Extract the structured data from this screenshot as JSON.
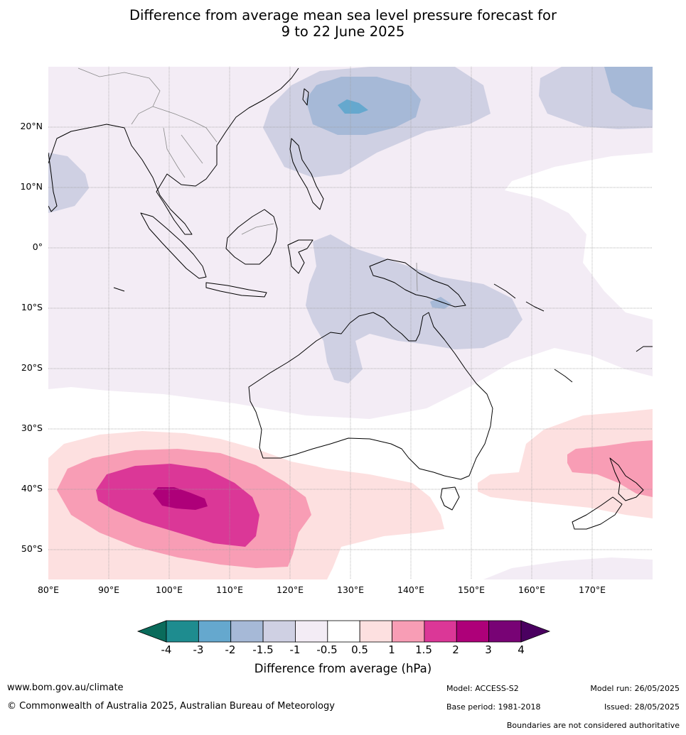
{
  "title_line1": "Difference from average mean sea level pressure forecast for",
  "title_line2": "9 to 22 June 2025",
  "map": {
    "lat_labels": [
      "20°N",
      "10°N",
      "0°",
      "10°S",
      "20°S",
      "30°S",
      "40°S",
      "50°S"
    ],
    "lon_labels": [
      "80°E",
      "90°E",
      "100°E",
      "110°E",
      "120°E",
      "130°E",
      "140°E",
      "150°E",
      "160°E",
      "170°E"
    ],
    "extent": {
      "lon_min": 80,
      "lon_max": 180,
      "lat_min": -55,
      "lat_max": 30
    }
  },
  "colorbar": {
    "ticks": [
      "-4",
      "-3",
      "-2",
      "-1.5",
      "-1",
      "-0.5",
      "0.5",
      "1",
      "1.5",
      "2",
      "3",
      "4"
    ],
    "colors": [
      "#1e8c8f",
      "#65a8ce",
      "#a6b9d7",
      "#cfd0e3",
      "#f3ecf5",
      "#ffffff",
      "#fde0e0",
      "#f89db5",
      "#db3797",
      "#ae0079",
      "#780375"
    ],
    "under_color": "#0a6b5b",
    "over_color": "#4a0060",
    "title": "Difference from average (hPa)"
  },
  "footer": {
    "website": "www.bom.gov.au/climate",
    "copyright": "© Commonwealth of Australia 2025, Australian Bureau of Meteorology",
    "model": "Model: ACCESS-S2",
    "base_period": "Base period: 1981-2018",
    "model_run": "Model run: 26/05/2025",
    "issued": "Issued: 28/05/2025",
    "disclaimer": "Boundaries are not considered authoritative"
  }
}
